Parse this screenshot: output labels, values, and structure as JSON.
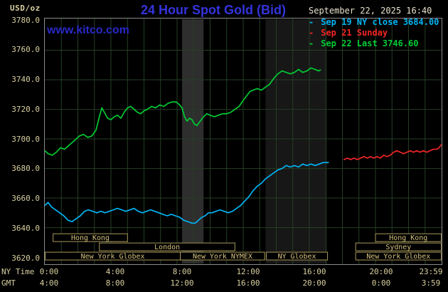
{
  "header": {
    "units_label": "USD/oz",
    "title": "24 Hour Spot Gold (Bid)",
    "datetime": "September 22, 2025 16:40",
    "watermark": "www.kitco.com"
  },
  "legend": [
    {
      "id": "sep19",
      "marker": "-",
      "label": "Sep 19 NY close 3684.00",
      "color": "#00b4f4"
    },
    {
      "id": "sep21",
      "marker": "-",
      "label": "Sep 21 Sunday",
      "color": "#f42525"
    },
    {
      "id": "sep22",
      "marker": "-",
      "label": "Sep 22 Last 3746.60",
      "color": "#00cc33"
    }
  ],
  "axes": {
    "x_ny_label": "NY Time",
    "x_gmt_label": "GMT",
    "y_ticks": [
      "3780.0",
      "3760.0",
      "3740.0",
      "3720.0",
      "3700.0",
      "3680.0",
      "3660.0",
      "3640.0",
      "3620.0"
    ],
    "x_ticks": [
      {
        "t": 0,
        "ny": "0:00",
        "gmt": "4:00"
      },
      {
        "t": 4,
        "ny": "4:00",
        "gmt": "8:00"
      },
      {
        "t": 8,
        "ny": "8:00",
        "gmt": "12:00"
      },
      {
        "t": 12,
        "ny": "12:00",
        "gmt": "16:00"
      },
      {
        "t": 16,
        "ny": "16:00",
        "gmt": "20:00"
      },
      {
        "t": 20,
        "ny": "20:00",
        "gmt": "0:00"
      },
      {
        "t": 23.983,
        "ny": "23:59",
        "gmt": "3:59"
      }
    ]
  },
  "sessions": {
    "rows": [
      [
        {
          "label": "Hong Kong",
          "t0": 0.5,
          "t1": 5.0
        },
        {
          "label": "Hong Kong",
          "t0": 20.0,
          "t1": 23.98
        }
      ],
      [
        {
          "label": "London",
          "t0": 3.3,
          "t1": 11.5
        },
        {
          "label": "Sydney",
          "t0": 18.8,
          "t1": 23.98
        }
      ],
      [
        {
          "label": "New York Globex",
          "t0": 0.02,
          "t1": 8.2
        },
        {
          "label": "New York NYMEX",
          "t0": 8.2,
          "t1": 13.3
        },
        {
          "label": "NY Globex",
          "t0": 13.4,
          "t1": 17.1
        },
        {
          "label": "New York Globex",
          "t0": 18.8,
          "t1": 23.98
        }
      ]
    ]
  },
  "theme": {
    "background": "#000000",
    "plot_border": "#8a8a8a",
    "grid_color": "#253f25",
    "axis_text": "#d8cf9f",
    "title_color": "#3434dd",
    "watermark_color": "#2929c8",
    "datetime_color": "#e8e2cc",
    "session_border": "#a89858",
    "session_text": "#d6c27c"
  },
  "chart_data": {
    "type": "line",
    "title": "24 Hour Spot Gold (Bid)",
    "ylabel": "USD/oz",
    "ylim": [
      3620,
      3780
    ],
    "y_tick_step": 20,
    "xlim_hours_ny": [
      0,
      24
    ],
    "x_grid_step_hours": 1,
    "ny_close_sep19": 3684.0,
    "last_sep22": 3746.6,
    "bands": [
      {
        "t0": 8.3,
        "t1": 9.6,
        "color": "#2e2e2e"
      },
      {
        "t0": 13.35,
        "t1": 17.05,
        "color": "#171717"
      }
    ],
    "series": [
      {
        "id": "sep19",
        "name": "Sep 19 NY close 3684.00",
        "color": "#00b4f4",
        "points": [
          [
            0,
            3655
          ],
          [
            0.2,
            3657
          ],
          [
            0.4,
            3654
          ],
          [
            0.65,
            3652
          ],
          [
            0.9,
            3650
          ],
          [
            1.15,
            3648
          ],
          [
            1.4,
            3645
          ],
          [
            1.65,
            3644
          ],
          [
            1.9,
            3646
          ],
          [
            2.15,
            3648
          ],
          [
            2.4,
            3651
          ],
          [
            2.65,
            3652
          ],
          [
            2.9,
            3651
          ],
          [
            3.15,
            3650
          ],
          [
            3.4,
            3651
          ],
          [
            3.65,
            3650
          ],
          [
            3.9,
            3651
          ],
          [
            4.15,
            3652
          ],
          [
            4.4,
            3653
          ],
          [
            4.65,
            3652
          ],
          [
            4.9,
            3651
          ],
          [
            5.15,
            3652
          ],
          [
            5.4,
            3653
          ],
          [
            5.65,
            3651
          ],
          [
            5.9,
            3650
          ],
          [
            6.15,
            3651
          ],
          [
            6.4,
            3652
          ],
          [
            6.65,
            3651
          ],
          [
            6.9,
            3650
          ],
          [
            7.15,
            3649
          ],
          [
            7.4,
            3648
          ],
          [
            7.65,
            3649
          ],
          [
            7.9,
            3648
          ],
          [
            8.15,
            3647
          ],
          [
            8.4,
            3645
          ],
          [
            8.65,
            3644
          ],
          [
            8.9,
            3643
          ],
          [
            9.1,
            3643
          ],
          [
            9.3,
            3645
          ],
          [
            9.5,
            3647
          ],
          [
            9.7,
            3648
          ],
          [
            9.9,
            3650
          ],
          [
            10.1,
            3650
          ],
          [
            10.35,
            3651
          ],
          [
            10.6,
            3652
          ],
          [
            10.85,
            3651
          ],
          [
            11.1,
            3650
          ],
          [
            11.35,
            3651
          ],
          [
            11.6,
            3653
          ],
          [
            11.85,
            3655
          ],
          [
            12.1,
            3658
          ],
          [
            12.35,
            3661
          ],
          [
            12.6,
            3665
          ],
          [
            12.85,
            3668
          ],
          [
            13.1,
            3670
          ],
          [
            13.35,
            3673
          ],
          [
            13.6,
            3675
          ],
          [
            13.85,
            3677
          ],
          [
            14.1,
            3679
          ],
          [
            14.35,
            3680
          ],
          [
            14.6,
            3682
          ],
          [
            14.85,
            3681
          ],
          [
            15.1,
            3682
          ],
          [
            15.35,
            3681
          ],
          [
            15.6,
            3683
          ],
          [
            15.85,
            3682
          ],
          [
            16.1,
            3683
          ],
          [
            16.35,
            3682
          ],
          [
            16.6,
            3683
          ],
          [
            16.85,
            3684
          ],
          [
            17.15,
            3684
          ]
        ]
      },
      {
        "id": "sep21",
        "name": "Sep 21 Sunday",
        "color": "#f42525",
        "points": [
          [
            18.1,
            3686
          ],
          [
            18.3,
            3687
          ],
          [
            18.5,
            3686
          ],
          [
            18.7,
            3687
          ],
          [
            18.9,
            3686
          ],
          [
            19.1,
            3687
          ],
          [
            19.3,
            3688
          ],
          [
            19.5,
            3687
          ],
          [
            19.7,
            3688
          ],
          [
            19.9,
            3687
          ],
          [
            20.1,
            3688
          ],
          [
            20.3,
            3687
          ],
          [
            20.5,
            3689
          ],
          [
            20.7,
            3688
          ],
          [
            20.9,
            3689
          ],
          [
            21.1,
            3691
          ],
          [
            21.3,
            3692
          ],
          [
            21.5,
            3691
          ],
          [
            21.7,
            3690
          ],
          [
            21.9,
            3691
          ],
          [
            22.1,
            3692
          ],
          [
            22.3,
            3691
          ],
          [
            22.5,
            3692
          ],
          [
            22.7,
            3691
          ],
          [
            22.9,
            3692
          ],
          [
            23.1,
            3691
          ],
          [
            23.3,
            3692
          ],
          [
            23.5,
            3693
          ],
          [
            23.7,
            3693
          ],
          [
            23.85,
            3694
          ],
          [
            23.98,
            3696
          ]
        ]
      },
      {
        "id": "sep22",
        "name": "Sep 22 Last 3746.60",
        "color": "#00cc33",
        "points": [
          [
            0,
            3692
          ],
          [
            0.2,
            3690
          ],
          [
            0.45,
            3689
          ],
          [
            0.7,
            3691
          ],
          [
            0.95,
            3694
          ],
          [
            1.2,
            3693
          ],
          [
            1.5,
            3696
          ],
          [
            1.8,
            3699
          ],
          [
            2.1,
            3702
          ],
          [
            2.35,
            3703
          ],
          [
            2.6,
            3701
          ],
          [
            2.85,
            3702
          ],
          [
            3.1,
            3706
          ],
          [
            3.3,
            3715
          ],
          [
            3.45,
            3721
          ],
          [
            3.6,
            3718
          ],
          [
            3.8,
            3714
          ],
          [
            4,
            3713
          ],
          [
            4.2,
            3715
          ],
          [
            4.4,
            3716
          ],
          [
            4.6,
            3714
          ],
          [
            4.8,
            3718
          ],
          [
            5,
            3721
          ],
          [
            5.2,
            3722
          ],
          [
            5.4,
            3720
          ],
          [
            5.6,
            3718
          ],
          [
            5.8,
            3717
          ],
          [
            6,
            3719
          ],
          [
            6.2,
            3720
          ],
          [
            6.45,
            3722
          ],
          [
            6.7,
            3721
          ],
          [
            6.95,
            3723
          ],
          [
            7.2,
            3722
          ],
          [
            7.45,
            3724
          ],
          [
            7.7,
            3725
          ],
          [
            7.95,
            3725
          ],
          [
            8.15,
            3723
          ],
          [
            8.3,
            3721
          ],
          [
            8.45,
            3715
          ],
          [
            8.6,
            3712
          ],
          [
            8.75,
            3714
          ],
          [
            8.9,
            3713
          ],
          [
            9.05,
            3710
          ],
          [
            9.2,
            3709
          ],
          [
            9.4,
            3712
          ],
          [
            9.6,
            3715
          ],
          [
            9.8,
            3717
          ],
          [
            10,
            3716
          ],
          [
            10.25,
            3715
          ],
          [
            10.5,
            3716
          ],
          [
            10.75,
            3717
          ],
          [
            11,
            3717
          ],
          [
            11.25,
            3718
          ],
          [
            11.5,
            3720
          ],
          [
            11.75,
            3722
          ],
          [
            12,
            3726
          ],
          [
            12.2,
            3729
          ],
          [
            12.4,
            3732
          ],
          [
            12.6,
            3733
          ],
          [
            12.85,
            3734
          ],
          [
            13.1,
            3733
          ],
          [
            13.35,
            3735
          ],
          [
            13.6,
            3737
          ],
          [
            13.85,
            3741
          ],
          [
            14.1,
            3744
          ],
          [
            14.35,
            3746
          ],
          [
            14.6,
            3745
          ],
          [
            14.85,
            3744
          ],
          [
            15.1,
            3745
          ],
          [
            15.35,
            3747
          ],
          [
            15.6,
            3745
          ],
          [
            15.85,
            3746
          ],
          [
            16.1,
            3748
          ],
          [
            16.35,
            3747
          ],
          [
            16.55,
            3746
          ],
          [
            16.67,
            3746.6
          ]
        ]
      }
    ]
  }
}
